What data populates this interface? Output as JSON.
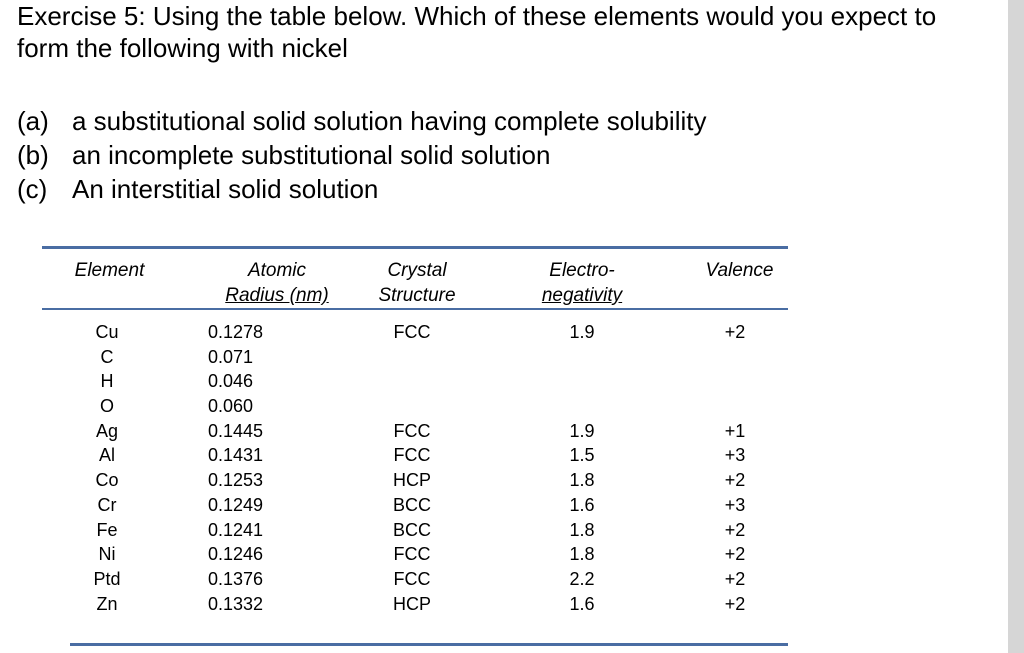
{
  "question": {
    "line1": "Exercise 5: Using the table below. Which of these elements would you expect to",
    "line2": "form the following with nickel"
  },
  "parts": [
    {
      "label": "(a)",
      "text": "a substitutional solid solution having complete solubility"
    },
    {
      "label": "(b)",
      "text": "an incomplete substitutional solid solution"
    },
    {
      "label": "(c)",
      "text": "An interstitial solid solution"
    }
  ],
  "table": {
    "headers": {
      "element": "Element",
      "radius_line1": "Atomic",
      "radius_line2": "Radius (nm)",
      "crystal_line1": "Crystal",
      "crystal_line2": "Structure",
      "neg_line1": "Electro-",
      "neg_line2": "negativity",
      "valence": "Valence"
    },
    "rows": [
      {
        "element": "Cu",
        "radius": "0.1278",
        "crystal": "FCC",
        "neg": "1.9",
        "valence": "+2"
      },
      {
        "element": "C",
        "radius": "0.071",
        "crystal": "",
        "neg": "",
        "valence": ""
      },
      {
        "element": "H",
        "radius": "0.046",
        "crystal": "",
        "neg": "",
        "valence": ""
      },
      {
        "element": "O",
        "radius": "0.060",
        "crystal": "",
        "neg": "",
        "valence": ""
      },
      {
        "element": "Ag",
        "radius": "0.1445",
        "crystal": "FCC",
        "neg": "1.9",
        "valence": "+1"
      },
      {
        "element": "Al",
        "radius": "0.1431",
        "crystal": "FCC",
        "neg": "1.5",
        "valence": "+3"
      },
      {
        "element": "Co",
        "radius": "0.1253",
        "crystal": "HCP",
        "neg": "1.8",
        "valence": "+2"
      },
      {
        "element": "Cr",
        "radius": "0.1249",
        "crystal": "BCC",
        "neg": "1.6",
        "valence": "+3"
      },
      {
        "element": "Fe",
        "radius": "0.1241",
        "crystal": "BCC",
        "neg": "1.8",
        "valence": "+2"
      },
      {
        "element": "Ni",
        "radius": "0.1246",
        "crystal": "FCC",
        "neg": "1.8",
        "valence": "+2"
      },
      {
        "element": "Ptd",
        "radius": "0.1376",
        "crystal": "FCC",
        "neg": "2.2",
        "valence": "+2"
      },
      {
        "element": "Zn",
        "radius": "0.1332",
        "crystal": "HCP",
        "neg": "1.6",
        "valence": "+2"
      }
    ]
  },
  "colors": {
    "rule": "#4a6da3",
    "strip": "#d6d6d6"
  }
}
